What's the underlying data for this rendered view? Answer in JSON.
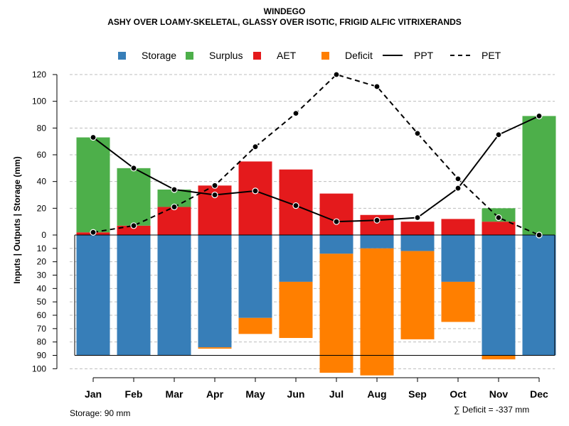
{
  "header": {
    "title": "WINDEGO",
    "subtitle": "ASHY OVER LOAMY-SKELETAL, GLASSY OVER ISOTIC, FRIGID ALFIC VITRIXERANDS"
  },
  "legend": [
    {
      "label": "Storage",
      "color": "#377EB8",
      "kind": "box"
    },
    {
      "label": "Surplus",
      "color": "#4DAF4A",
      "kind": "box"
    },
    {
      "label": "AET",
      "color": "#E41A1C",
      "kind": "box"
    },
    {
      "label": "Deficit",
      "color": "#FF7F00",
      "kind": "box"
    },
    {
      "label": "PPT",
      "color": "#000000",
      "kind": "line"
    },
    {
      "label": "PET",
      "color": "#000000",
      "kind": "dash"
    }
  ],
  "footer": {
    "storage_note": "Storage: 90 mm",
    "deficit_note": "∑ Deficit = -337 mm"
  },
  "chart_data": {
    "type": "bar",
    "title": "WINDEGO",
    "subtitle": "ASHY OVER LOAMY-SKELETAL, GLASSY OVER ISOTIC, FRIGID ALFIC VITRIXERANDS",
    "ylabel": "Inputs | Outputs | Storage    (mm)",
    "categories": [
      "Jan",
      "Feb",
      "Mar",
      "Apr",
      "May",
      "Jun",
      "Jul",
      "Aug",
      "Sep",
      "Oct",
      "Nov",
      "Dec"
    ],
    "upper_yticks": [
      "0",
      "20",
      "40",
      "60",
      "80",
      "100",
      "120"
    ],
    "lower_yticks": [
      "10",
      "20",
      "30",
      "40",
      "50",
      "60",
      "70",
      "80",
      "90",
      "100"
    ],
    "upper_ylim": [
      0,
      120
    ],
    "lower_ylim": [
      0,
      100
    ],
    "storage_capacity": 90,
    "series": [
      {
        "name": "AET",
        "color": "#E41A1C",
        "values": [
          2,
          7,
          21,
          37,
          55,
          49,
          31,
          15,
          10,
          12,
          10,
          0
        ]
      },
      {
        "name": "Surplus",
        "color": "#4DAF4A",
        "values": [
          71,
          43,
          13,
          0,
          0,
          0,
          0,
          0,
          0,
          0,
          10,
          89
        ]
      },
      {
        "name": "Storage",
        "color": "#377EB8",
        "values": [
          90,
          90,
          90,
          84,
          62,
          35,
          14,
          10,
          12,
          35,
          90,
          90
        ]
      },
      {
        "name": "Deficit",
        "color": "#FF7F00",
        "values": [
          0,
          0,
          0,
          1,
          12,
          42,
          89,
          95,
          66,
          30,
          3,
          0
        ]
      },
      {
        "name": "PPT",
        "color": "#000000",
        "values": [
          73,
          50,
          34,
          30,
          33,
          22,
          10,
          11,
          13,
          35,
          75,
          89
        ]
      },
      {
        "name": "PET",
        "color": "#000000",
        "values": [
          2,
          7,
          21,
          37,
          66,
          91,
          120,
          111,
          76,
          42,
          13,
          0
        ]
      }
    ]
  }
}
